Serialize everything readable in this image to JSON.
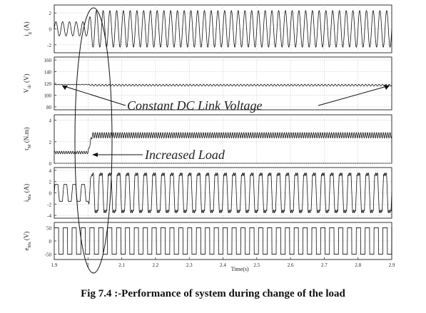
{
  "caption": "Fig 7.4 :-Performance of system during change of the load",
  "chart_data": {
    "type": "line",
    "x_axis": {
      "label": "Time(s)",
      "range": [
        1.9,
        2.9
      ],
      "ticks": [
        "1.9",
        "2",
        "2.1",
        "2.2",
        "2.3",
        "2.4",
        "2.5",
        "2.6",
        "2.7",
        "2.8",
        "2.9"
      ]
    },
    "load_change_time": 2.0,
    "grid": true,
    "annotations": [
      {
        "text": "Constant DC Link Voltage",
        "panel": 1
      },
      {
        "text": "Increased Load",
        "panel": 2
      }
    ],
    "panels": [
      {
        "ylabel": "i_g (A)",
        "ylabel_main": "i",
        "ylabel_sub": "g",
        "ylabel_unit": "(A)",
        "ylim": [
          -3,
          3
        ],
        "yticks": [
          "2",
          "0",
          "-2"
        ],
        "yticks_values": [
          2,
          0,
          -2
        ],
        "series": {
          "kind": "sine",
          "dc_before": 0,
          "dc_after": 0,
          "amp_before": 0.9,
          "amp_after": 2.3,
          "cycles": 50
        }
      },
      {
        "ylabel": "V_dc (V)",
        "ylabel_main": "V",
        "ylabel_sub": "dc",
        "ylabel_unit": "(V)",
        "ylim": [
          75,
          165
        ],
        "yticks": [
          "160",
          "140",
          "120",
          "100",
          "80"
        ],
        "yticks_values": [
          160,
          140,
          120,
          100,
          80
        ],
        "series": {
          "kind": "sine",
          "dc_before": 118,
          "dc_after": 117,
          "amp_before": 0.4,
          "amp_after": 1.5,
          "cycles": 100
        }
      },
      {
        "ylabel": "τ_M (N.m)",
        "ylabel_main": "τ",
        "ylabel_sub": "M",
        "ylabel_unit": "(N.m)",
        "ylim": [
          0,
          4.5
        ],
        "yticks": [
          "4",
          "2",
          "0"
        ],
        "yticks_values": [
          4,
          2,
          0
        ],
        "series": {
          "kind": "sine",
          "dc_before": 1.0,
          "dc_after": 2.6,
          "amp_before": 0.12,
          "amp_after": 0.25,
          "cycles": 150
        }
      },
      {
        "ylabel": "i_Ma (A)",
        "ylabel_main": "i",
        "ylabel_sub": "Ma",
        "ylabel_unit": "(A)",
        "ylim": [
          -4.5,
          4.5
        ],
        "yticks": [
          "4",
          "2",
          "0",
          "-2",
          "-4"
        ],
        "yticks_values": [
          4,
          2,
          0,
          -2,
          -4
        ],
        "series": {
          "kind": "trapezoid",
          "amp_before": 1.5,
          "amp_after": 3.3,
          "cycles": 38
        }
      },
      {
        "ylabel": "e_Ma (V)",
        "ylabel_main": "e",
        "ylabel_sub": "Ma",
        "ylabel_unit": "(V)",
        "ylim": [
          -70,
          70
        ],
        "yticks": [
          "50",
          "0",
          "-50"
        ],
        "yticks_values": [
          50,
          0,
          -50
        ],
        "series": {
          "kind": "square",
          "amp_before": 50,
          "amp_after": 50,
          "cycles": 38
        }
      }
    ]
  }
}
